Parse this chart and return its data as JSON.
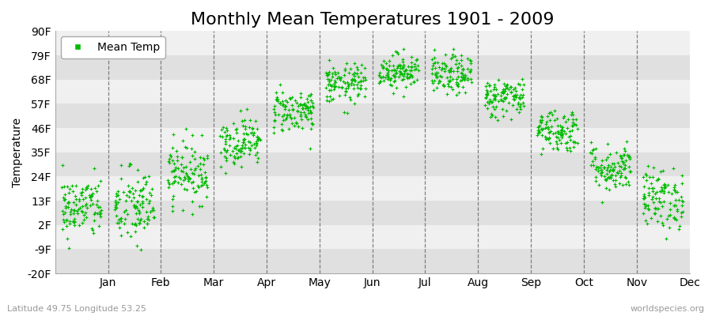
{
  "title": "Monthly Mean Temperatures 1901 - 2009",
  "ylabel": "Temperature",
  "subtitle_left": "Latitude 49.75 Longitude 53.25",
  "subtitle_right": "worldspecies.org",
  "legend_label": "Mean Temp",
  "dot_color": "#00bb00",
  "dot_size": 6,
  "background_color": "#ffffff",
  "band_colors": [
    "#e0e0e0",
    "#f0f0f0"
  ],
  "ytick_labels": [
    "-20F",
    "-9F",
    "2F",
    "13F",
    "24F",
    "35F",
    "46F",
    "57F",
    "68F",
    "79F",
    "90F"
  ],
  "ytick_values": [
    -20,
    -9,
    2,
    13,
    24,
    35,
    46,
    57,
    68,
    79,
    90
  ],
  "ylim": [
    -20,
    90
  ],
  "months": [
    "Jan",
    "Feb",
    "Mar",
    "Apr",
    "May",
    "Jun",
    "Jul",
    "Aug",
    "Sep",
    "Oct",
    "Nov",
    "Dec"
  ],
  "n_years": 109,
  "monthly_mean_F": [
    10.0,
    10.0,
    26.0,
    40.0,
    54.0,
    66.0,
    72.0,
    70.0,
    60.0,
    45.0,
    28.0,
    14.0
  ],
  "monthly_std_F": [
    7.0,
    9.0,
    7.0,
    5.5,
    5.0,
    4.5,
    4.0,
    4.5,
    4.5,
    5.0,
    5.5,
    7.0
  ],
  "title_fontsize": 16,
  "axis_fontsize": 10,
  "tick_fontsize": 10,
  "legend_fontsize": 10
}
